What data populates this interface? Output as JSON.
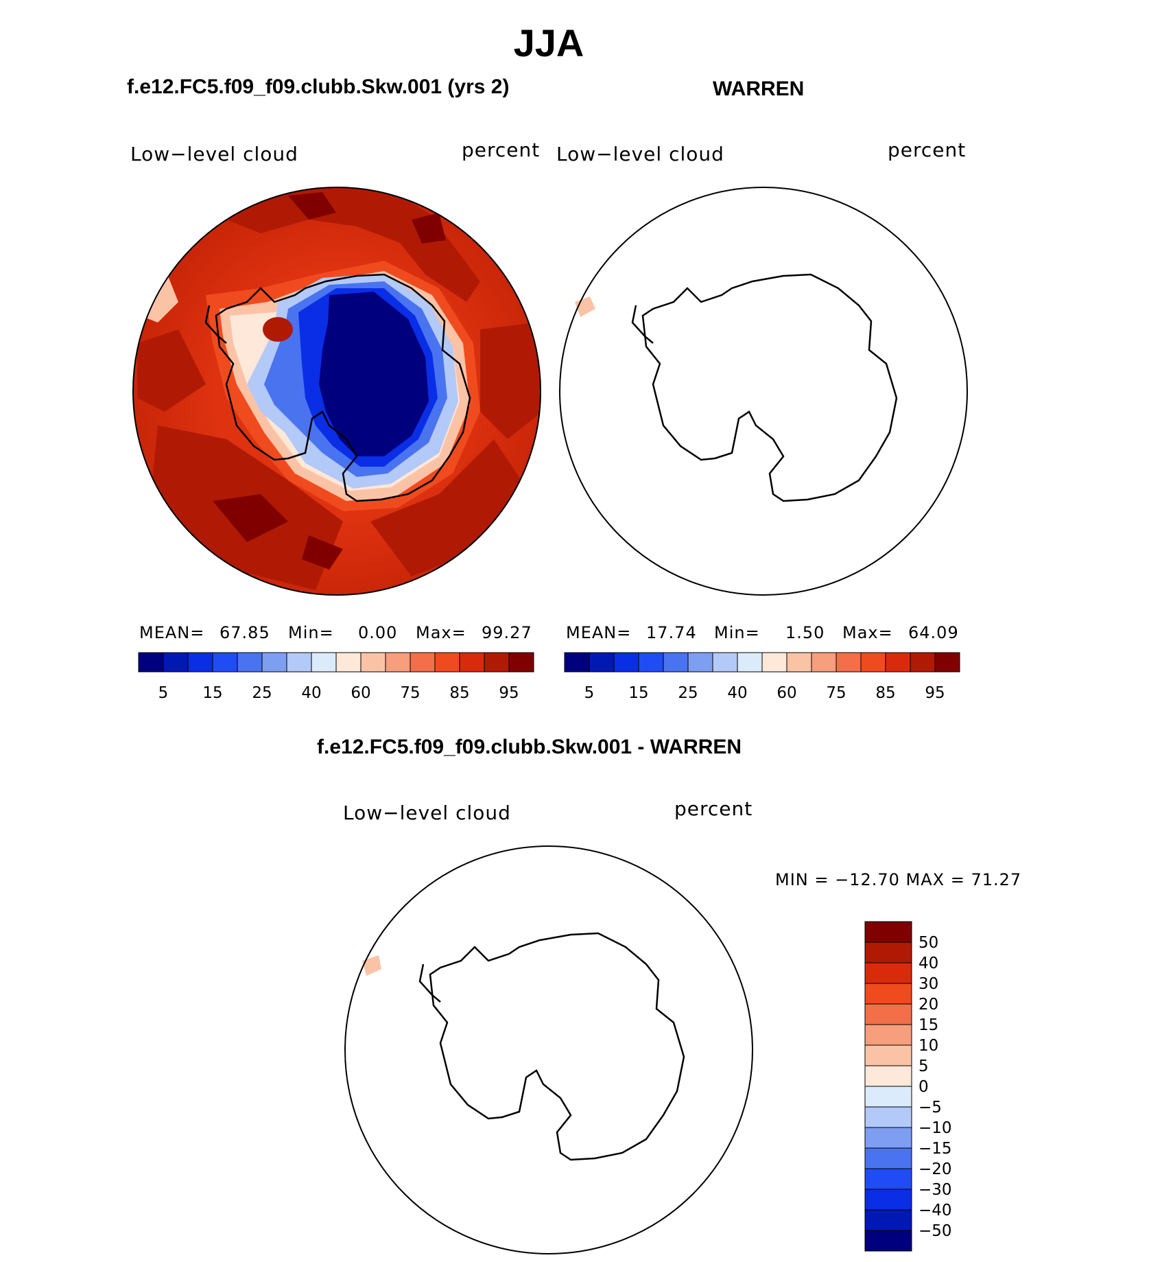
{
  "main_title": "JJA",
  "panels": [
    {
      "case_title": "f.e12.FC5.f09_f09.clubb.Skw.001 (yrs 2)",
      "variable": "Low−level cloud",
      "units": "percent",
      "stats": {
        "mean_label": "MEAN=",
        "mean": "67.85",
        "min_label": "Min=",
        "min": "0.00",
        "max_label": "Max=",
        "max": "99.27"
      }
    },
    {
      "case_title": "WARREN",
      "variable": "Low−level cloud",
      "units": "percent",
      "stats": {
        "mean_label": "MEAN=",
        "mean": "17.74",
        "min_label": "Min=",
        "min": "1.50",
        "max_label": "Max=",
        "max": "64.09"
      }
    }
  ],
  "difference": {
    "case_title": "f.e12.FC5.f09_f09.clubb.Skw.001 - WARREN",
    "variable": "Low−level cloud",
    "units": "percent",
    "minmax": "MIN = −12.70  MAX =   71.27"
  },
  "colorbar_top": {
    "colors": [
      "#00007f",
      "#0019b3",
      "#0a2ee6",
      "#1f4cf5",
      "#4a73f0",
      "#7e9ef2",
      "#b3c9f7",
      "#dcebfb",
      "#fde8da",
      "#fbc3a6",
      "#f79e7c",
      "#f26f4a",
      "#f04b1e",
      "#d92b0c",
      "#b01a04",
      "#800000"
    ],
    "labels": [
      "5",
      "15",
      "25",
      "40",
      "60",
      "75",
      "85",
      "95"
    ]
  },
  "colorbar_diff": {
    "colors": [
      "#800000",
      "#b01a04",
      "#d92b0c",
      "#f04b1e",
      "#f26f4a",
      "#f79e7c",
      "#fbc3a6",
      "#fde8da",
      "#dcebfb",
      "#b3c9f7",
      "#7e9ef2",
      "#4a73f0",
      "#1f4cf5",
      "#0a2ee6",
      "#0019b3",
      "#00007f"
    ],
    "labels": [
      "50",
      "40",
      "30",
      "20",
      "15",
      "10",
      "5",
      "0",
      "−5",
      "−10",
      "−15",
      "−20",
      "−30",
      "−40",
      "−50"
    ]
  }
}
